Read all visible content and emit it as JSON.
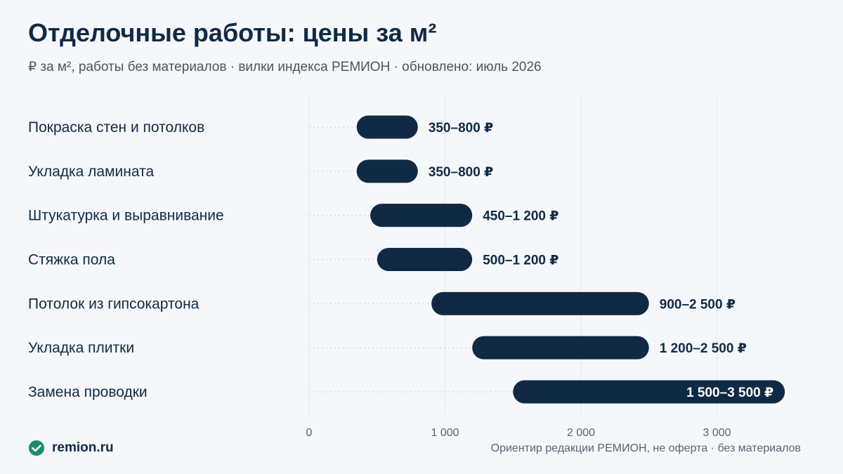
{
  "header": {
    "title": "Отделочные работы: цены за м²",
    "subtitle": "₽ за м², работы без материалов · вилки индекса РЕМИОН · обновлено: июль 2026"
  },
  "chart_data": {
    "type": "bar",
    "orientation": "horizontal-range",
    "categories": [
      "Покраска стен и потолков",
      "Укладка ламината",
      "Штукатурка и выравнивание",
      "Стяжка пола",
      "Потолок из гипсокартона",
      "Укладка плитки",
      "Замена проводки"
    ],
    "ranges": [
      [
        350,
        800
      ],
      [
        350,
        800
      ],
      [
        450,
        1200
      ],
      [
        500,
        1200
      ],
      [
        900,
        2500
      ],
      [
        1200,
        2500
      ],
      [
        1500,
        3500
      ]
    ],
    "data_labels": [
      "350–800 ₽",
      "350–800 ₽",
      "450–1 200 ₽",
      "500–1 200 ₽",
      "900–2 500 ₽",
      "1 200–2 500 ₽",
      "1 500–3 500 ₽"
    ],
    "x_ticks": [
      0,
      1000,
      2000,
      3000
    ],
    "x_tick_labels": [
      "0",
      "1 000",
      "2 000",
      "3 000"
    ],
    "xlim": [
      0,
      3500
    ],
    "grid": "vertical",
    "bar_color": "#102a45"
  },
  "footer": {
    "brand": "remion.ru",
    "brand_icon": "check-circle-icon",
    "brand_color": "#1f8a70",
    "note": "Ориентир редакции РЕМИОН, не оферта · без материалов"
  }
}
